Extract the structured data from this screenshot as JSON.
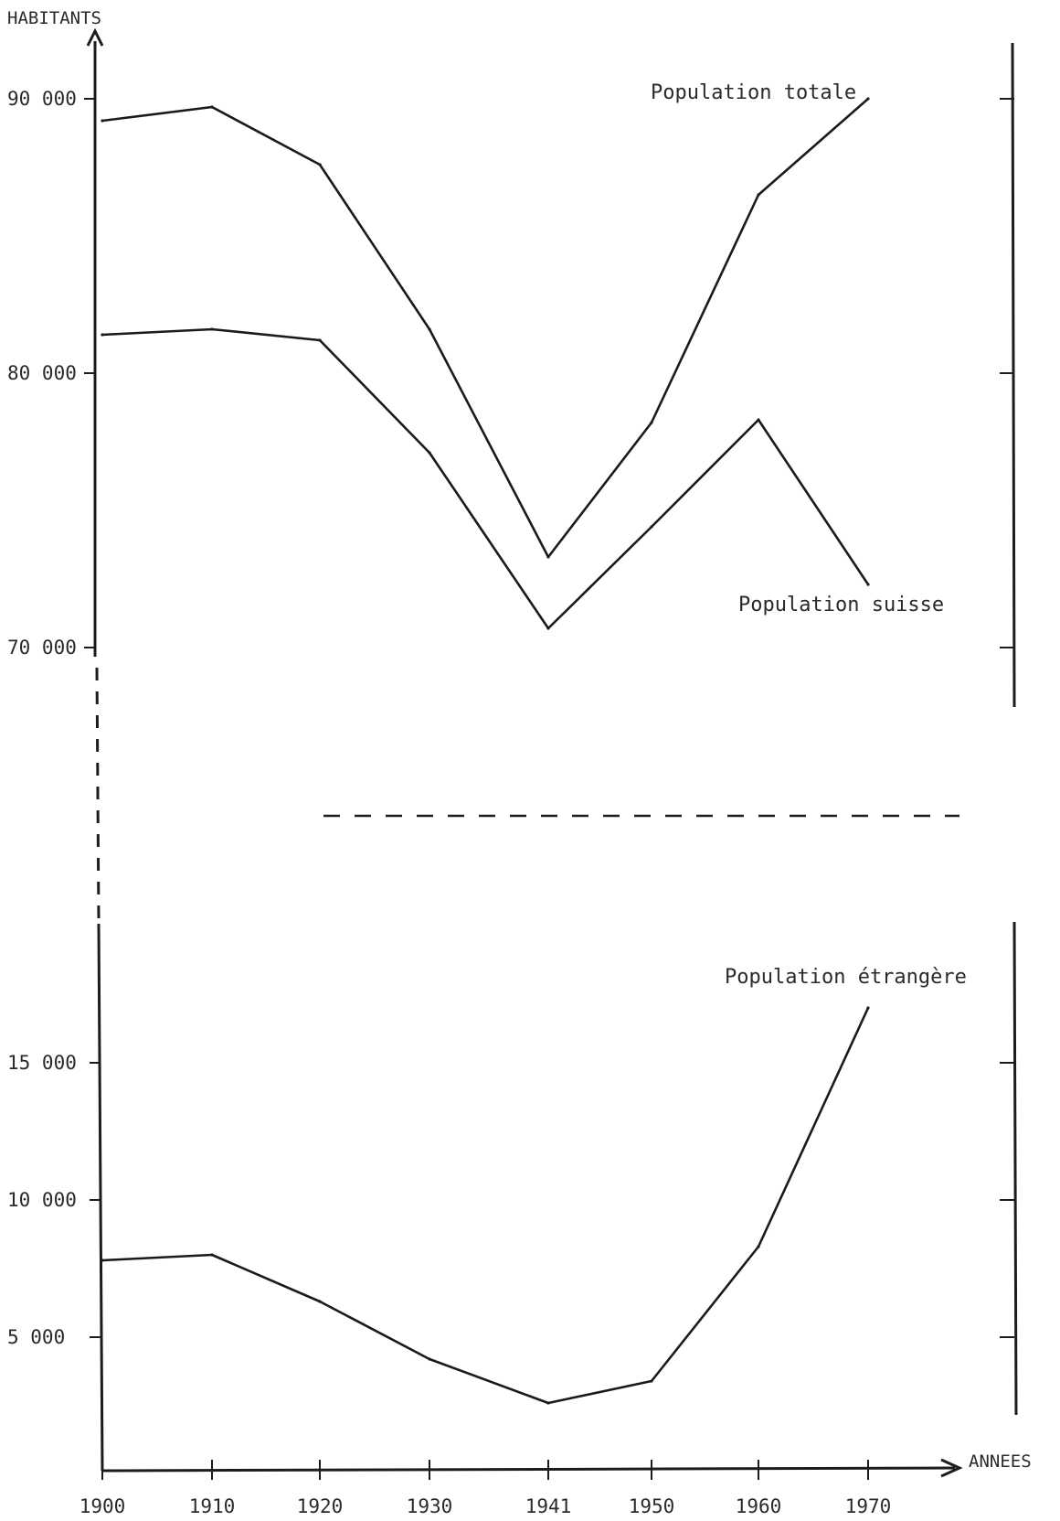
{
  "chart_data": {
    "type": "line",
    "ylabel": "HABITANTS",
    "xlabel": "ANNEES",
    "x": [
      1900,
      1910,
      1920,
      1930,
      1941,
      1950,
      1960,
      1970
    ],
    "x_tick_labels": [
      "1900",
      "1910",
      "1920",
      "1930",
      "1941",
      "1950",
      "1960",
      "1970"
    ],
    "axis_break": true,
    "upper_panel": {
      "ylim": [
        64000,
        92000
      ],
      "y_ticks": [
        70000,
        80000,
        90000
      ],
      "y_tick_labels": [
        "70 000",
        "80 000",
        "90 000"
      ]
    },
    "lower_panel": {
      "ylim": [
        0,
        20000
      ],
      "y_ticks": [
        5000,
        10000,
        15000
      ],
      "y_tick_labels": [
        "5 000",
        "10 000",
        "15 000"
      ]
    },
    "series": [
      {
        "name": "Population totale",
        "panel": "upper",
        "values": [
          89200,
          89700,
          87600,
          81600,
          73300,
          78200,
          86500,
          90000
        ]
      },
      {
        "name": "Population suisse",
        "panel": "upper",
        "values": [
          81400,
          81600,
          81200,
          77100,
          70700,
          74400,
          78300,
          72300
        ]
      },
      {
        "name": "Population étrangère",
        "panel": "lower",
        "values": [
          7800,
          8000,
          6300,
          4200,
          2600,
          3400,
          8300,
          17000
        ]
      }
    ],
    "grid": false,
    "legend": "inline labels"
  }
}
